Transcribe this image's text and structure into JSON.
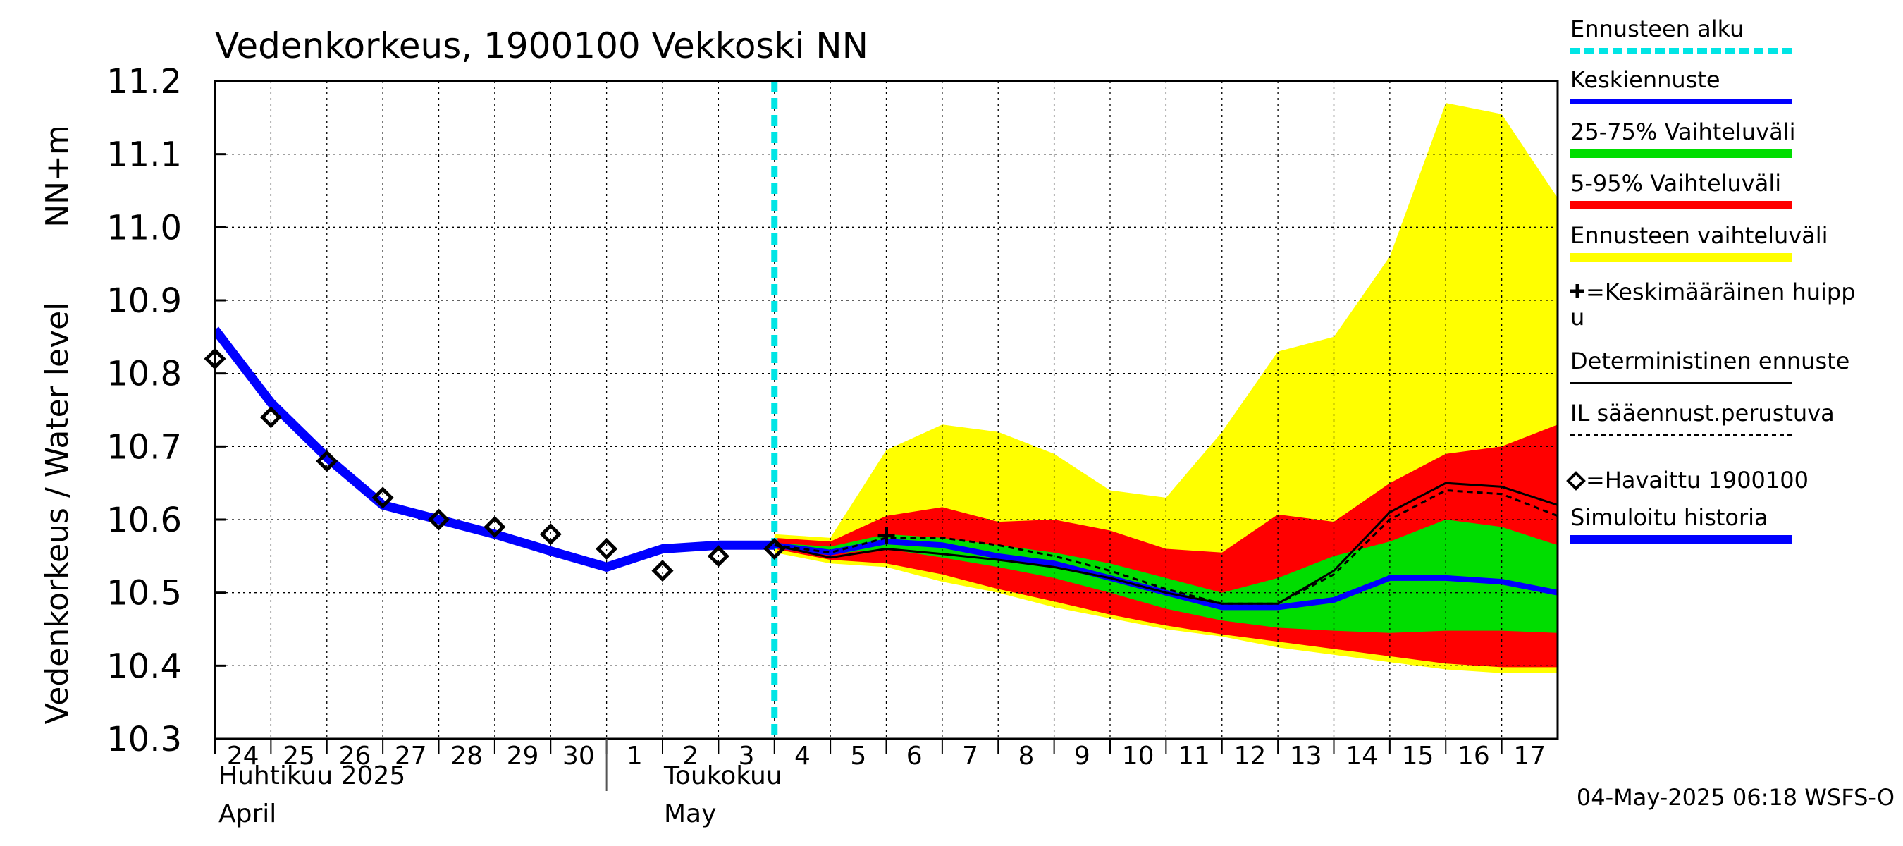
{
  "chart_data": {
    "type": "line",
    "title": "Vedenkorkeus, 1900100 Vekkoski NN",
    "ylabel": "Vedenkorkeus / Water level",
    "yunit": "NN+m",
    "ylim": [
      10.3,
      11.2
    ],
    "yticks": [
      "10.3",
      "10.4",
      "10.5",
      "10.6",
      "10.7",
      "10.8",
      "10.9",
      "11.0",
      "11.1",
      "11.2"
    ],
    "x_day_labels": [
      "24",
      "25",
      "26",
      "27",
      "28",
      "29",
      "30",
      "1",
      "2",
      "3",
      "4",
      "5",
      "6",
      "7",
      "8",
      "9",
      "10",
      "11",
      "12",
      "13",
      "14",
      "15",
      "16",
      "17"
    ],
    "x_month_labels": [
      {
        "fi": "Huhtikuu  2025",
        "en": "April"
      },
      {
        "fi": "Toukokuu",
        "en": "May"
      }
    ],
    "x_dates": [
      "2025-04-24",
      "2025-04-25",
      "2025-04-26",
      "2025-04-27",
      "2025-04-28",
      "2025-04-29",
      "2025-04-30",
      "2025-05-01",
      "2025-05-02",
      "2025-05-03",
      "2025-05-04",
      "2025-05-05",
      "2025-05-06",
      "2025-05-07",
      "2025-05-08",
      "2025-05-09",
      "2025-05-10",
      "2025-05-11",
      "2025-05-12",
      "2025-05-13",
      "2025-05-14",
      "2025-05-15",
      "2025-05-16",
      "2025-05-17"
    ],
    "grid": true,
    "legend_placement": "right",
    "forecast_start": "2025-05-04",
    "colors": {
      "forecast_start": "#00e5e5",
      "mean": "#0000ff",
      "band_25_75": "#00dd00",
      "band_5_95": "#ff0000",
      "band_full": "#ffff00",
      "observed": "#000000",
      "deterministic": "#000000",
      "simulated": "#0000ff"
    },
    "legend": [
      {
        "label": "Ennusteen alku",
        "style": "cyan-dashed"
      },
      {
        "label": "Keskiennuste",
        "style": "blue-line"
      },
      {
        "label": "25-75% Vaihteluväli",
        "style": "green-band"
      },
      {
        "label": "5-95% Vaihteluväli",
        "style": "red-band"
      },
      {
        "label": "Ennusteen vaihteluväli",
        "style": "yellow-band"
      },
      {
        "label": "=Keskimääräinen huipp",
        "label2": "u",
        "style": "plus-marker"
      },
      {
        "label": "Deterministinen ennuste",
        "style": "black-line"
      },
      {
        "label": "IL sääennust.perustuva",
        "style": "black-dashed"
      },
      {
        "label": "=Havaittu 1900100",
        "style": "diamond-marker"
      },
      {
        "label": "Simuloitu historia",
        "style": "blue-thick"
      }
    ],
    "timestamp": "04-May-2025 06:18 WSFS-O",
    "series": [
      {
        "name": "Simuloitu historia",
        "x": [
          "2025-04-24",
          "2025-04-25",
          "2025-04-26",
          "2025-04-27",
          "2025-04-28",
          "2025-04-29",
          "2025-04-30",
          "2025-05-01",
          "2025-05-02",
          "2025-05-03",
          "2025-05-04"
        ],
        "y": [
          10.86,
          10.76,
          10.685,
          10.62,
          10.6,
          10.58,
          10.557,
          10.535,
          10.56,
          10.565,
          10.565
        ]
      },
      {
        "name": "Havaittu 1900100",
        "x": [
          "2025-04-24",
          "2025-04-25",
          "2025-04-26",
          "2025-04-27",
          "2025-04-28",
          "2025-04-29",
          "2025-04-30",
          "2025-05-01",
          "2025-05-02",
          "2025-05-03",
          "2025-05-04"
        ],
        "y": [
          10.82,
          10.74,
          10.68,
          10.63,
          10.6,
          10.59,
          10.58,
          10.56,
          10.53,
          10.55,
          10.56
        ]
      },
      {
        "name": "Keskiennuste",
        "x": [
          "2025-05-04",
          "2025-05-05",
          "2025-05-06",
          "2025-05-07",
          "2025-05-08",
          "2025-05-09",
          "2025-05-10",
          "2025-05-11",
          "2025-05-12",
          "2025-05-13",
          "2025-05-14",
          "2025-05-15",
          "2025-05-16",
          "2025-05-17",
          "2025-05-18"
        ],
        "y": [
          10.565,
          10.555,
          10.57,
          10.565,
          10.55,
          10.54,
          10.52,
          10.5,
          10.48,
          10.48,
          10.49,
          10.52,
          10.52,
          10.515,
          10.5
        ]
      },
      {
        "name": "Deterministinen ennuste",
        "x": [
          "2025-05-04",
          "2025-05-05",
          "2025-05-06",
          "2025-05-07",
          "2025-05-08",
          "2025-05-09",
          "2025-05-10",
          "2025-05-11",
          "2025-05-12",
          "2025-05-13",
          "2025-05-14",
          "2025-05-15",
          "2025-05-16",
          "2025-05-17",
          "2025-05-18"
        ],
        "y": [
          10.565,
          10.548,
          10.56,
          10.553,
          10.545,
          10.535,
          10.52,
          10.5,
          10.485,
          10.485,
          10.53,
          10.61,
          10.65,
          10.645,
          10.62
        ]
      },
      {
        "name": "IL sääennust.perustuva",
        "x": [
          "2025-05-04",
          "2025-05-05",
          "2025-05-06",
          "2025-05-07",
          "2025-05-08",
          "2025-05-09",
          "2025-05-10",
          "2025-05-11",
          "2025-05-12",
          "2025-05-13",
          "2025-05-14",
          "2025-05-15",
          "2025-05-16",
          "2025-05-17",
          "2025-05-18"
        ],
        "y": [
          10.565,
          10.555,
          10.575,
          10.575,
          10.565,
          10.55,
          10.53,
          10.505,
          10.485,
          10.485,
          10.525,
          10.6,
          10.64,
          10.635,
          10.605
        ]
      },
      {
        "name": "Keskimääräinen huippu",
        "x": [
          "2025-05-06"
        ],
        "y": [
          10.578
        ]
      },
      {
        "name": "Ennusteen vaihteluväli",
        "x": [
          "2025-05-04",
          "2025-05-05",
          "2025-05-06",
          "2025-05-07",
          "2025-05-08",
          "2025-05-09",
          "2025-05-10",
          "2025-05-11",
          "2025-05-12",
          "2025-05-13",
          "2025-05-14",
          "2025-05-15",
          "2025-05-16",
          "2025-05-17",
          "2025-05-18"
        ],
        "lower": [
          10.555,
          10.54,
          10.535,
          10.515,
          10.5,
          10.48,
          10.465,
          10.45,
          10.44,
          10.425,
          10.415,
          10.405,
          10.395,
          10.39,
          10.39
        ],
        "upper": [
          10.58,
          10.575,
          10.695,
          10.73,
          10.72,
          10.69,
          10.64,
          10.63,
          10.72,
          10.83,
          10.85,
          10.96,
          11.17,
          11.155,
          11.04
        ]
      },
      {
        "name": "5-95% Vaihteluväli",
        "x": [
          "2025-05-04",
          "2025-05-05",
          "2025-05-06",
          "2025-05-07",
          "2025-05-08",
          "2025-05-09",
          "2025-05-10",
          "2025-05-11",
          "2025-05-12",
          "2025-05-13",
          "2025-05-14",
          "2025-05-15",
          "2025-05-16",
          "2025-05-17",
          "2025-05-18"
        ],
        "lower": [
          10.56,
          10.545,
          10.54,
          10.525,
          10.505,
          10.488,
          10.47,
          10.455,
          10.443,
          10.433,
          10.423,
          10.413,
          10.403,
          10.398,
          10.398
        ],
        "upper": [
          10.575,
          10.57,
          10.605,
          10.617,
          10.597,
          10.6,
          10.585,
          10.56,
          10.555,
          10.607,
          10.597,
          10.65,
          10.69,
          10.7,
          10.73
        ]
      },
      {
        "name": "25-75% Vaihteluväli",
        "x": [
          "2025-05-04",
          "2025-05-05",
          "2025-05-06",
          "2025-05-07",
          "2025-05-08",
          "2025-05-09",
          "2025-05-10",
          "2025-05-11",
          "2025-05-12",
          "2025-05-13",
          "2025-05-14",
          "2025-05-15",
          "2025-05-16",
          "2025-05-17",
          "2025-05-18"
        ],
        "lower": [
          10.563,
          10.553,
          10.56,
          10.548,
          10.535,
          10.52,
          10.5,
          10.478,
          10.462,
          10.452,
          10.448,
          10.445,
          10.448,
          10.448,
          10.445
        ],
        "upper": [
          10.568,
          10.563,
          10.58,
          10.575,
          10.565,
          10.555,
          10.54,
          10.52,
          10.5,
          10.52,
          10.55,
          10.57,
          10.6,
          10.59,
          10.565
        ]
      }
    ]
  }
}
